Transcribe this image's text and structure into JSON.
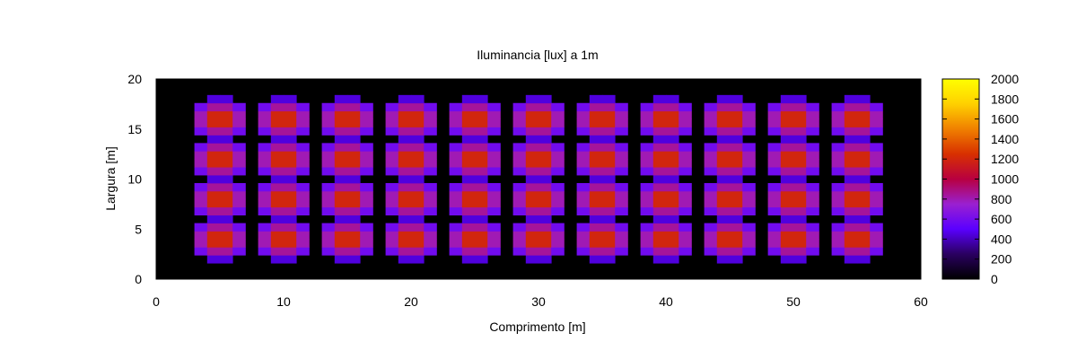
{
  "chart_data": {
    "type": "heatmap",
    "title": "Iluminancia [lux] a 1m",
    "xlabel": "Comprimento [m]",
    "ylabel": "Largura [m]",
    "xlim": [
      0,
      60
    ],
    "ylim": [
      0,
      20
    ],
    "x_ticks": [
      "0",
      "10",
      "20",
      "30",
      "40",
      "50",
      "60"
    ],
    "y_ticks": [
      "0",
      "5",
      "10",
      "15",
      "20"
    ],
    "colorbar": {
      "range": [
        0,
        2000
      ],
      "ticks": [
        "0",
        "200",
        "400",
        "600",
        "800",
        "1000",
        "1200",
        "1400",
        "1600",
        "1800",
        "2000"
      ],
      "colormap": [
        "#000000",
        "#2a0060",
        "#5a00ff",
        "#9a20d0",
        "#b80040",
        "#d83000",
        "#f08000",
        "#ffd000",
        "#ffff00"
      ]
    },
    "grid": false,
    "luminaire_x_m": [
      5,
      10,
      15,
      20,
      25,
      30,
      35,
      40,
      45,
      50,
      55
    ],
    "luminaire_y_m": [
      4,
      8,
      12,
      16
    ],
    "peak_lux": 1500,
    "background_lux": 0
  }
}
